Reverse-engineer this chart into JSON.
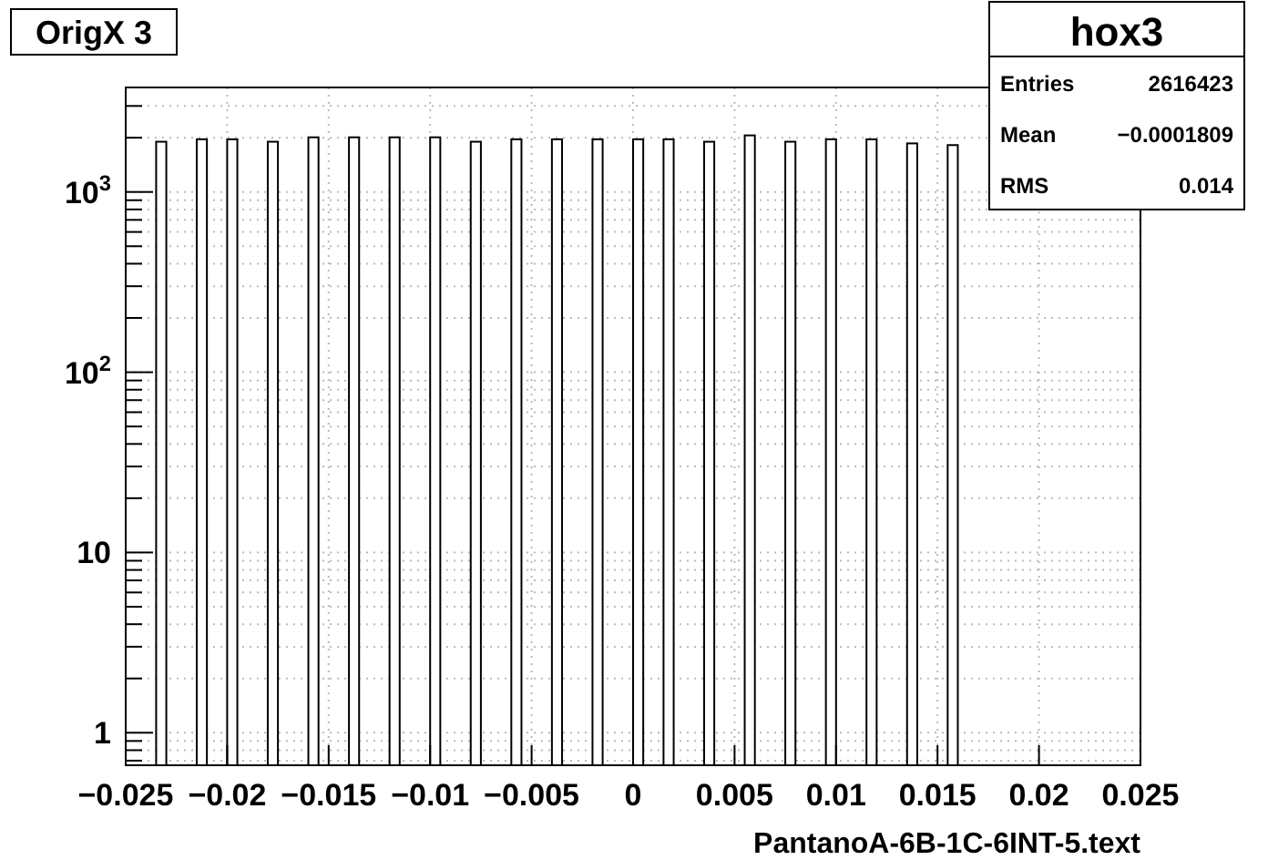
{
  "chart_data": {
    "type": "histogram",
    "title": "OrigX 3",
    "xlabel": "PantanoA-6B-1C-6INT-5.text",
    "annotations": [
      "hox3",
      "Entries",
      "2616423",
      "Mean",
      "−0.0001809",
      "RMS",
      "0.014"
    ],
    "bins": [
      -0.025,
      -0.0245,
      -0.024,
      -0.0235,
      -0.023,
      -0.0225,
      -0.022,
      -0.0215,
      -0.021,
      -0.0205,
      -0.02,
      -0.0195,
      -0.019,
      -0.0185,
      -0.018,
      -0.0175,
      -0.017,
      -0.0165,
      -0.016,
      -0.0155,
      -0.015,
      -0.0145,
      -0.014,
      -0.0135,
      -0.013,
      -0.0125,
      -0.012,
      -0.0115,
      -0.011,
      -0.0105,
      -0.01,
      -0.0095,
      -0.009,
      -0.0085,
      -0.008,
      -0.0075,
      -0.007,
      -0.0065,
      -0.006,
      -0.0055,
      -0.005,
      -0.0045,
      -0.004,
      -0.0035,
      -0.003,
      -0.0025,
      -0.002,
      -0.0015,
      -0.001,
      -0.0005,
      0,
      0.0005,
      0.001,
      0.0015,
      0.002,
      0.0025,
      0.003,
      0.0035,
      0.004,
      0.0045,
      0.005,
      0.0055,
      0.006,
      0.0065,
      0.007,
      0.0075,
      0.008,
      0.0085,
      0.009,
      0.0095,
      0.01,
      0.0105,
      0.011,
      0.0115,
      0.012,
      0.0125,
      0.013,
      0.0135,
      0.014,
      0.0145,
      0.015,
      0.0155,
      0.016,
      0.0165,
      0.017,
      0.0175,
      0.018,
      0.0185,
      0.019,
      0.0195,
      0.02,
      0.0205,
      0.021,
      0.0215,
      0.022,
      0.0225,
      0.023,
      0.0235,
      0.024,
      0.0245,
      0.025
    ],
    "values": [
      null,
      null,
      null,
      1900,
      null,
      null,
      null,
      1960,
      null,
      null,
      1960,
      null,
      null,
      null,
      1900,
      null,
      null,
      null,
      2010,
      null,
      null,
      null,
      2010,
      null,
      null,
      null,
      2010,
      null,
      null,
      null,
      2010,
      null,
      null,
      null,
      1900,
      null,
      null,
      null,
      1960,
      null,
      null,
      null,
      1960,
      null,
      null,
      null,
      1960,
      null,
      null,
      null,
      1960,
      null,
      null,
      1960,
      null,
      null,
      null,
      1900,
      null,
      null,
      null,
      2060,
      null,
      null,
      null,
      1900,
      null,
      null,
      null,
      1960,
      null,
      null,
      null,
      1960,
      null,
      null,
      null,
      1860,
      null,
      null,
      null,
      1820,
      null,
      null,
      null,
      null,
      null,
      null,
      null,
      null,
      null,
      null,
      null,
      null,
      null,
      null,
      null,
      null,
      null,
      null
    ],
    "color": "#ffffff",
    "xlim": [
      -0.025,
      0.025
    ],
    "xticks": [
      {
        "value": -0.025,
        "label": "−0.025"
      },
      {
        "value": -0.02,
        "label": "−0.02"
      },
      {
        "value": -0.015,
        "label": "−0.015"
      },
      {
        "value": -0.01,
        "label": "−0.01"
      },
      {
        "value": -0.005,
        "label": "−0.005"
      },
      0,
      0.005,
      0.01,
      0.015,
      0.02,
      0.025
    ],
    "ylim": [
      0.66,
      3800
    ],
    "log": true,
    "yticks": [
      {
        "value": 0.7,
        "label": null
      },
      {
        "value": 0.8,
        "label": null
      },
      {
        "value": 0.9,
        "label": null
      },
      1,
      {
        "value": 2,
        "label": null
      },
      {
        "value": 3,
        "label": null
      },
      {
        "value": 4,
        "label": null
      },
      {
        "value": 5,
        "label": null
      },
      {
        "value": 6,
        "label": null
      },
      {
        "value": 7,
        "label": null
      },
      {
        "value": 8,
        "label": null
      },
      {
        "value": 9,
        "label": null
      },
      10,
      {
        "value": 20,
        "label": null
      },
      {
        "value": 30,
        "label": null
      },
      {
        "value": 40,
        "label": null
      },
      {
        "value": 50,
        "label": null
      },
      {
        "value": 60,
        "label": null
      },
      {
        "value": 70,
        "label": null
      },
      {
        "value": 80,
        "label": null
      },
      {
        "value": 90,
        "label": null
      },
      {
        "value": 100,
        "label": "10$^{2}$"
      },
      {
        "value": 200,
        "label": null
      },
      {
        "value": 300,
        "label": null
      },
      {
        "value": 400,
        "label": null
      },
      {
        "value": 500,
        "label": null
      },
      {
        "value": 600,
        "label": null
      },
      {
        "value": 700,
        "label": null
      },
      {
        "value": 800,
        "label": null
      },
      {
        "value": 900,
        "label": null
      },
      {
        "value": 1000,
        "label": "10$^{3}$"
      },
      {
        "value": 2000,
        "label": null
      },
      {
        "value": 3000,
        "label": null
      }
    ],
    "grid": true
  }
}
